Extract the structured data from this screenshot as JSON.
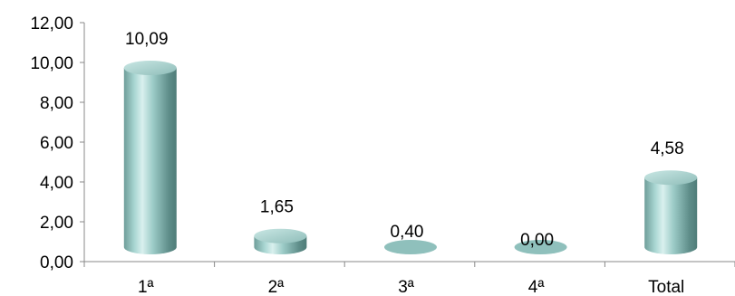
{
  "chart_data": {
    "type": "bar",
    "title": "",
    "xlabel": "",
    "ylabel": "",
    "categories": [
      "1ª",
      "2ª",
      "3ª",
      "4ª",
      "Total"
    ],
    "values": [
      10.09,
      1.65,
      0.4,
      0.0,
      4.58
    ],
    "value_labels": [
      "10,09",
      "1,65",
      "0,40",
      "0,00",
      "4,58"
    ],
    "ylim": [
      0,
      12
    ],
    "yticks": [
      0,
      2,
      4,
      6,
      8,
      10,
      12
    ],
    "ytick_labels": [
      "0,00",
      "2,00",
      "4,00",
      "6,00",
      "8,00",
      "10,00",
      "12,00"
    ],
    "grid": false,
    "legend": "none",
    "bar_style": "3d-cylinder",
    "bar_color": "#8fc3bf"
  }
}
